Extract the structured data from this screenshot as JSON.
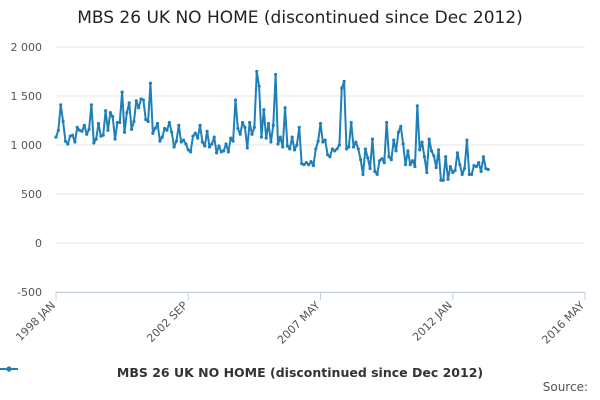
{
  "chart_data": {
    "type": "line",
    "title": "MBS 26 UK NO HOME (discontinued since Dec 2012)",
    "xlabel": "",
    "ylabel": "",
    "ylim": [
      -500,
      2000
    ],
    "y_ticks": [
      {
        "value": 2000,
        "label": "2 000"
      },
      {
        "value": 1500,
        "label": "1 500"
      },
      {
        "value": 1000,
        "label": "1 000"
      },
      {
        "value": 500,
        "label": "500"
      },
      {
        "value": 0,
        "label": "0"
      },
      {
        "value": -500,
        "label": "-500"
      }
    ],
    "x_start": "1998 JAN",
    "x_ticks": [
      {
        "index": 0,
        "label": "1998 JAN"
      },
      {
        "index": 56,
        "label": "2002 SEP"
      },
      {
        "index": 112,
        "label": "2007 MAY"
      },
      {
        "index": 168,
        "label": "2012 JAN"
      },
      {
        "index": 224,
        "label": "2016 MAY"
      }
    ],
    "x_max_index": 224,
    "color": "#1f7fb8",
    "series": [
      {
        "name": "MBS 26 UK NO HOME (discontinued since Dec 2012)",
        "values": [
          1080,
          1150,
          1410,
          1240,
          1040,
          1010,
          1090,
          1100,
          1030,
          1180,
          1150,
          1140,
          1200,
          1110,
          1160,
          1410,
          1020,
          1060,
          1220,
          1090,
          1100,
          1350,
          1150,
          1330,
          1290,
          1060,
          1230,
          1230,
          1540,
          1130,
          1330,
          1430,
          1160,
          1240,
          1450,
          1380,
          1470,
          1460,
          1260,
          1240,
          1630,
          1120,
          1170,
          1220,
          1040,
          1080,
          1170,
          1150,
          1230,
          1130,
          980,
          1040,
          1200,
          1030,
          1050,
          1010,
          950,
          930,
          1090,
          1120,
          1070,
          1200,
          1030,
          990,
          1140,
          980,
          1010,
          1080,
          920,
          990,
          930,
          940,
          1010,
          930,
          1070,
          1040,
          1460,
          1170,
          1110,
          1230,
          1180,
          970,
          1230,
          1110,
          1180,
          1750,
          1600,
          1080,
          1360,
          1070,
          1220,
          1030,
          1200,
          1720,
          1010,
          1080,
          980,
          1380,
          990,
          960,
          1080,
          950,
          1000,
          1180,
          810,
          800,
          820,
          800,
          830,
          790,
          960,
          1040,
          1220,
          1030,
          1050,
          900,
          880,
          960,
          940,
          960,
          1000,
          1580,
          1650,
          960,
          980,
          1230,
          980,
          1030,
          960,
          850,
          700,
          960,
          870,
          760,
          1060,
          730,
          700,
          840,
          860,
          820,
          1230,
          880,
          850,
          1050,
          940,
          1130,
          1190,
          1010,
          800,
          940,
          800,
          840,
          780,
          1400,
          950,
          1030,
          880,
          720,
          1060,
          940,
          890,
          770,
          950,
          640,
          640,
          880,
          650,
          780,
          720,
          740,
          920,
          800,
          700,
          760,
          1050,
          700,
          700,
          790,
          780,
          820,
          730,
          880,
          760,
          750
        ]
      }
    ]
  },
  "legend": {
    "label": "MBS 26 UK NO HOME (discontinued since Dec 2012)"
  },
  "source": {
    "label": "Source:"
  }
}
